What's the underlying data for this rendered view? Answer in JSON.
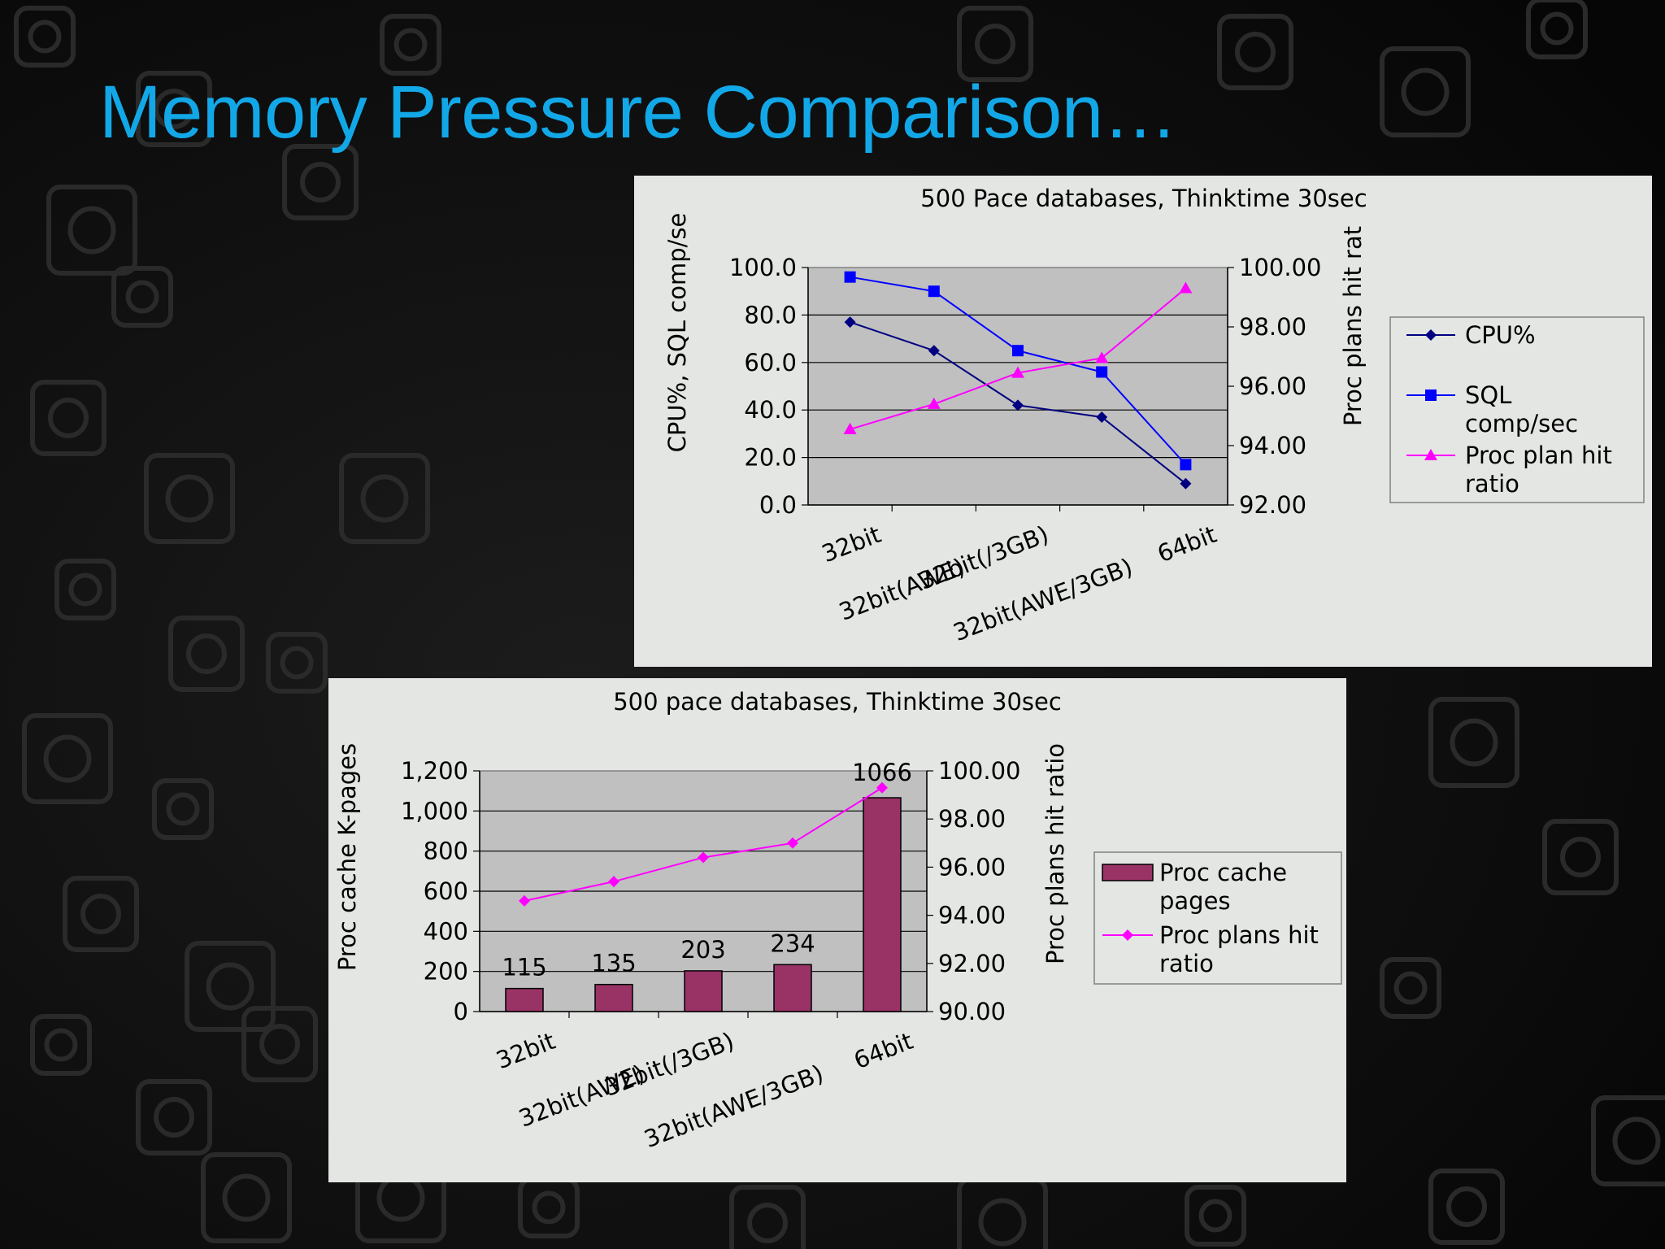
{
  "slide": {
    "title": "Memory Pressure Comparison…"
  },
  "colors": {
    "background": "#0b0b0b",
    "title": "#12a8e8",
    "panel": "#e4e6e4",
    "plot_area": "#c0c0c0",
    "cpu": "#000080",
    "sql": "#0000ff",
    "hit_ratio": "#ff00ff",
    "bar": "#993366"
  },
  "chart_data": [
    {
      "type": "line",
      "title": "500 Pace databases, Thinktime 30sec",
      "categories": [
        "32bit",
        "32bit(AWE)",
        "32bit(/3GB)",
        "32bit(AWE/3GB)",
        "64bit"
      ],
      "ylabel": "CPU%, SQL comp/se",
      "y2label": "Proc plans hit rat",
      "ylim": [
        0,
        100
      ],
      "y2lim": [
        92,
        100
      ],
      "y_ticks": [
        "0.0",
        "20.0",
        "40.0",
        "60.0",
        "80.0",
        "100.0"
      ],
      "y2_ticks": [
        "92.00",
        "94.00",
        "96.00",
        "98.00",
        "100.00"
      ],
      "legend_position": "right",
      "series": [
        {
          "name": "CPU%",
          "axis": "left",
          "marker": "diamond",
          "color": "#000080",
          "values": [
            77,
            65,
            42,
            37,
            9
          ]
        },
        {
          "name": "SQL comp/sec",
          "axis": "left",
          "marker": "square",
          "color": "#0000ff",
          "values": [
            96,
            90,
            65,
            56,
            17
          ]
        },
        {
          "name": "Proc plan hit ratio",
          "axis": "right",
          "marker": "triangle",
          "color": "#ff00ff",
          "values": [
            94.55,
            95.4,
            96.45,
            96.95,
            99.3
          ]
        }
      ]
    },
    {
      "type": "bar",
      "title": "500 pace databases, Thinktime 30sec",
      "categories": [
        "32bit",
        "32bit(AWE)",
        "32bit(/3GB)",
        "32bit(AWE/3GB)",
        "64bit"
      ],
      "ylabel": "Proc cache K-pages",
      "y2label": "Proc plans hit ratio",
      "ylim": [
        0,
        1200
      ],
      "y2lim": [
        90,
        100
      ],
      "y_ticks": [
        "0",
        "200",
        "400",
        "600",
        "800",
        "1,000",
        "1,200"
      ],
      "y2_ticks": [
        "90.00",
        "92.00",
        "94.00",
        "96.00",
        "98.00",
        "100.00"
      ],
      "legend_position": "right",
      "series": [
        {
          "name": "Proc cache pages",
          "axis": "left",
          "type": "bar",
          "color": "#993366",
          "values": [
            115,
            135,
            203,
            234,
            1066
          ],
          "labels": [
            "115",
            "135",
            "203",
            "234",
            "1066"
          ]
        },
        {
          "name": "Proc plans hit ratio",
          "axis": "right",
          "type": "line",
          "marker": "diamond",
          "color": "#ff00ff",
          "values": [
            94.6,
            95.4,
            96.4,
            97.0,
            99.3
          ]
        }
      ]
    }
  ]
}
